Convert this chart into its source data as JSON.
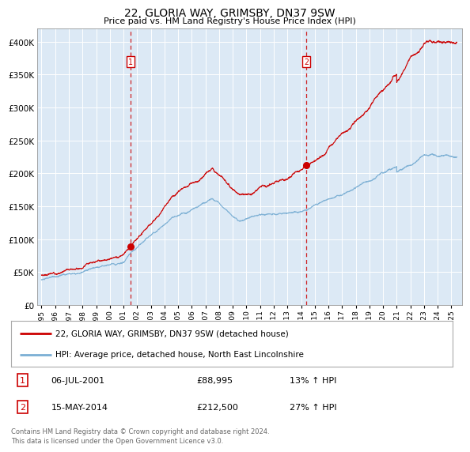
{
  "title": "22, GLORIA WAY, GRIMSBY, DN37 9SW",
  "subtitle": "Price paid vs. HM Land Registry's House Price Index (HPI)",
  "title_fontsize": 10,
  "subtitle_fontsize": 8,
  "background_color": "#ffffff",
  "plot_bg_color": "#dce9f5",
  "yticks": [
    0,
    50000,
    100000,
    150000,
    200000,
    250000,
    300000,
    350000,
    400000
  ],
  "ylim": [
    0,
    420000
  ],
  "xlim_start": 1994.7,
  "xlim_end": 2025.8,
  "xtick_years": [
    1995,
    1996,
    1997,
    1998,
    1999,
    2000,
    2001,
    2002,
    2003,
    2004,
    2005,
    2006,
    2007,
    2008,
    2009,
    2010,
    2011,
    2012,
    2013,
    2014,
    2015,
    2016,
    2017,
    2018,
    2019,
    2020,
    2021,
    2022,
    2023,
    2024,
    2025
  ],
  "event1_x": 2001.51,
  "event1_y": 88995,
  "event1_label": "1",
  "event1_date": "06-JUL-2001",
  "event1_price": "£88,995",
  "event1_hpi": "13% ↑ HPI",
  "event2_x": 2014.37,
  "event2_y": 212500,
  "event2_label": "2",
  "event2_date": "15-MAY-2014",
  "event2_price": "£212,500",
  "event2_hpi": "27% ↑ HPI",
  "red_line_color": "#cc0000",
  "blue_line_color": "#7bafd4",
  "dashed_line_color": "#cc0000",
  "legend_label_red": "22, GLORIA WAY, GRIMSBY, DN37 9SW (detached house)",
  "legend_label_blue": "HPI: Average price, detached house, North East Lincolnshire",
  "footer_text": "Contains HM Land Registry data © Crown copyright and database right 2024.\nThis data is licensed under the Open Government Licence v3.0.",
  "event_box_color": "#cc0000",
  "grid_color": "#ffffff"
}
